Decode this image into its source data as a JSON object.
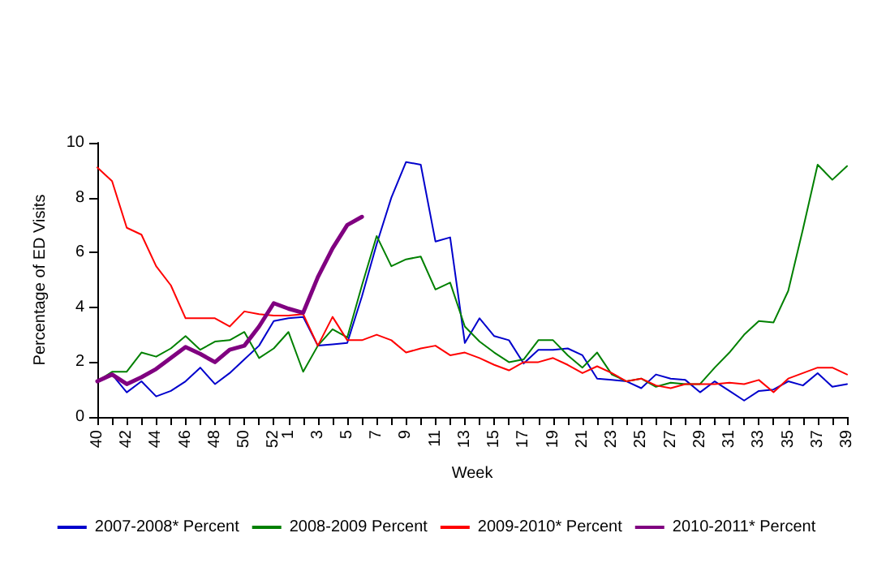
{
  "chart_data": {
    "type": "line",
    "xlabel": "Week",
    "ylabel": "Percentage of ED Visits",
    "categories": [
      "40",
      null,
      "42",
      null,
      "44",
      null,
      "46",
      null,
      "48",
      null,
      "50",
      null,
      "52",
      "1",
      null,
      "3",
      null,
      "5",
      null,
      "7",
      null,
      "9",
      null,
      "11",
      null,
      "13",
      null,
      "15",
      null,
      "17",
      null,
      "19",
      null,
      "21",
      null,
      "23",
      null,
      "25",
      null,
      "27",
      null,
      "29",
      null,
      "31",
      null,
      "33",
      null,
      "35",
      null,
      "37",
      null,
      "39"
    ],
    "ylim": [
      0,
      10
    ],
    "yticks": [
      0,
      2,
      4,
      6,
      8,
      10
    ],
    "grid": false,
    "legend": "bottom",
    "marker": "none",
    "line_style": "solid",
    "series": [
      {
        "name": "2007-2008* Percent",
        "color": "#0000cc",
        "values": [
          1.3,
          1.55,
          0.9,
          1.3,
          0.75,
          0.95,
          1.3,
          1.8,
          1.2,
          1.6,
          2.1,
          2.6,
          3.5,
          3.6,
          3.65,
          2.6,
          2.65,
          2.7,
          4.4,
          6.3,
          8.0,
          9.3,
          9.2,
          6.4,
          6.55,
          2.7,
          3.6,
          2.95,
          2.8,
          1.95,
          2.45,
          2.45,
          2.5,
          2.25,
          1.4,
          1.35,
          1.3,
          1.05,
          1.55,
          1.4,
          1.35,
          0.9,
          1.3,
          0.95,
          0.6,
          0.95,
          1.0,
          1.3,
          1.15,
          1.6,
          1.1,
          1.2
        ]
      },
      {
        "name": "2008-2009 Percent",
        "color": "#008000",
        "values": [
          1.3,
          1.65,
          1.65,
          2.35,
          2.2,
          2.5,
          2.95,
          2.45,
          2.75,
          2.8,
          3.1,
          2.15,
          2.5,
          3.1,
          1.65,
          2.6,
          3.2,
          2.9,
          4.8,
          6.6,
          5.5,
          5.75,
          5.85,
          4.65,
          4.9,
          3.3,
          2.75,
          2.35,
          2.0,
          2.1,
          2.8,
          2.8,
          2.25,
          1.8,
          2.35,
          1.55,
          1.3,
          1.4,
          1.1,
          1.25,
          1.2,
          1.2,
          1.8,
          2.35,
          3.0,
          3.5,
          3.45,
          4.6,
          6.85,
          9.2,
          8.65,
          9.15
        ]
      },
      {
        "name": "2009-2010* Percent",
        "color": "#ff0000",
        "values": [
          9.1,
          8.6,
          6.9,
          6.65,
          5.5,
          4.8,
          3.6,
          3.6,
          3.6,
          3.3,
          3.85,
          3.75,
          3.7,
          3.7,
          3.75,
          2.6,
          3.65,
          2.8,
          2.8,
          3.0,
          2.8,
          2.35,
          2.5,
          2.6,
          2.25,
          2.35,
          2.15,
          1.9,
          1.7,
          2.0,
          2.0,
          2.15,
          1.9,
          1.6,
          1.85,
          1.6,
          1.3,
          1.4,
          1.15,
          1.05,
          1.2,
          1.2,
          1.2,
          1.25,
          1.2,
          1.35,
          0.9,
          1.4,
          1.6,
          1.8,
          1.8,
          1.55
        ]
      },
      {
        "name": "2010-2011* Percent",
        "color": "#800080",
        "values": [
          1.3,
          1.55,
          1.2,
          1.45,
          1.75,
          2.15,
          2.55,
          2.3,
          2.0,
          2.45,
          2.6,
          3.3,
          4.15,
          3.95,
          3.8,
          5.1,
          6.15,
          7.0,
          7.3,
          null,
          null,
          null,
          null,
          null,
          null,
          null,
          null,
          null,
          null,
          null,
          null,
          null,
          null,
          null,
          null,
          null,
          null,
          null,
          null,
          null,
          null,
          null,
          null,
          null,
          null,
          null,
          null,
          null,
          null,
          null,
          null,
          null
        ]
      }
    ]
  }
}
